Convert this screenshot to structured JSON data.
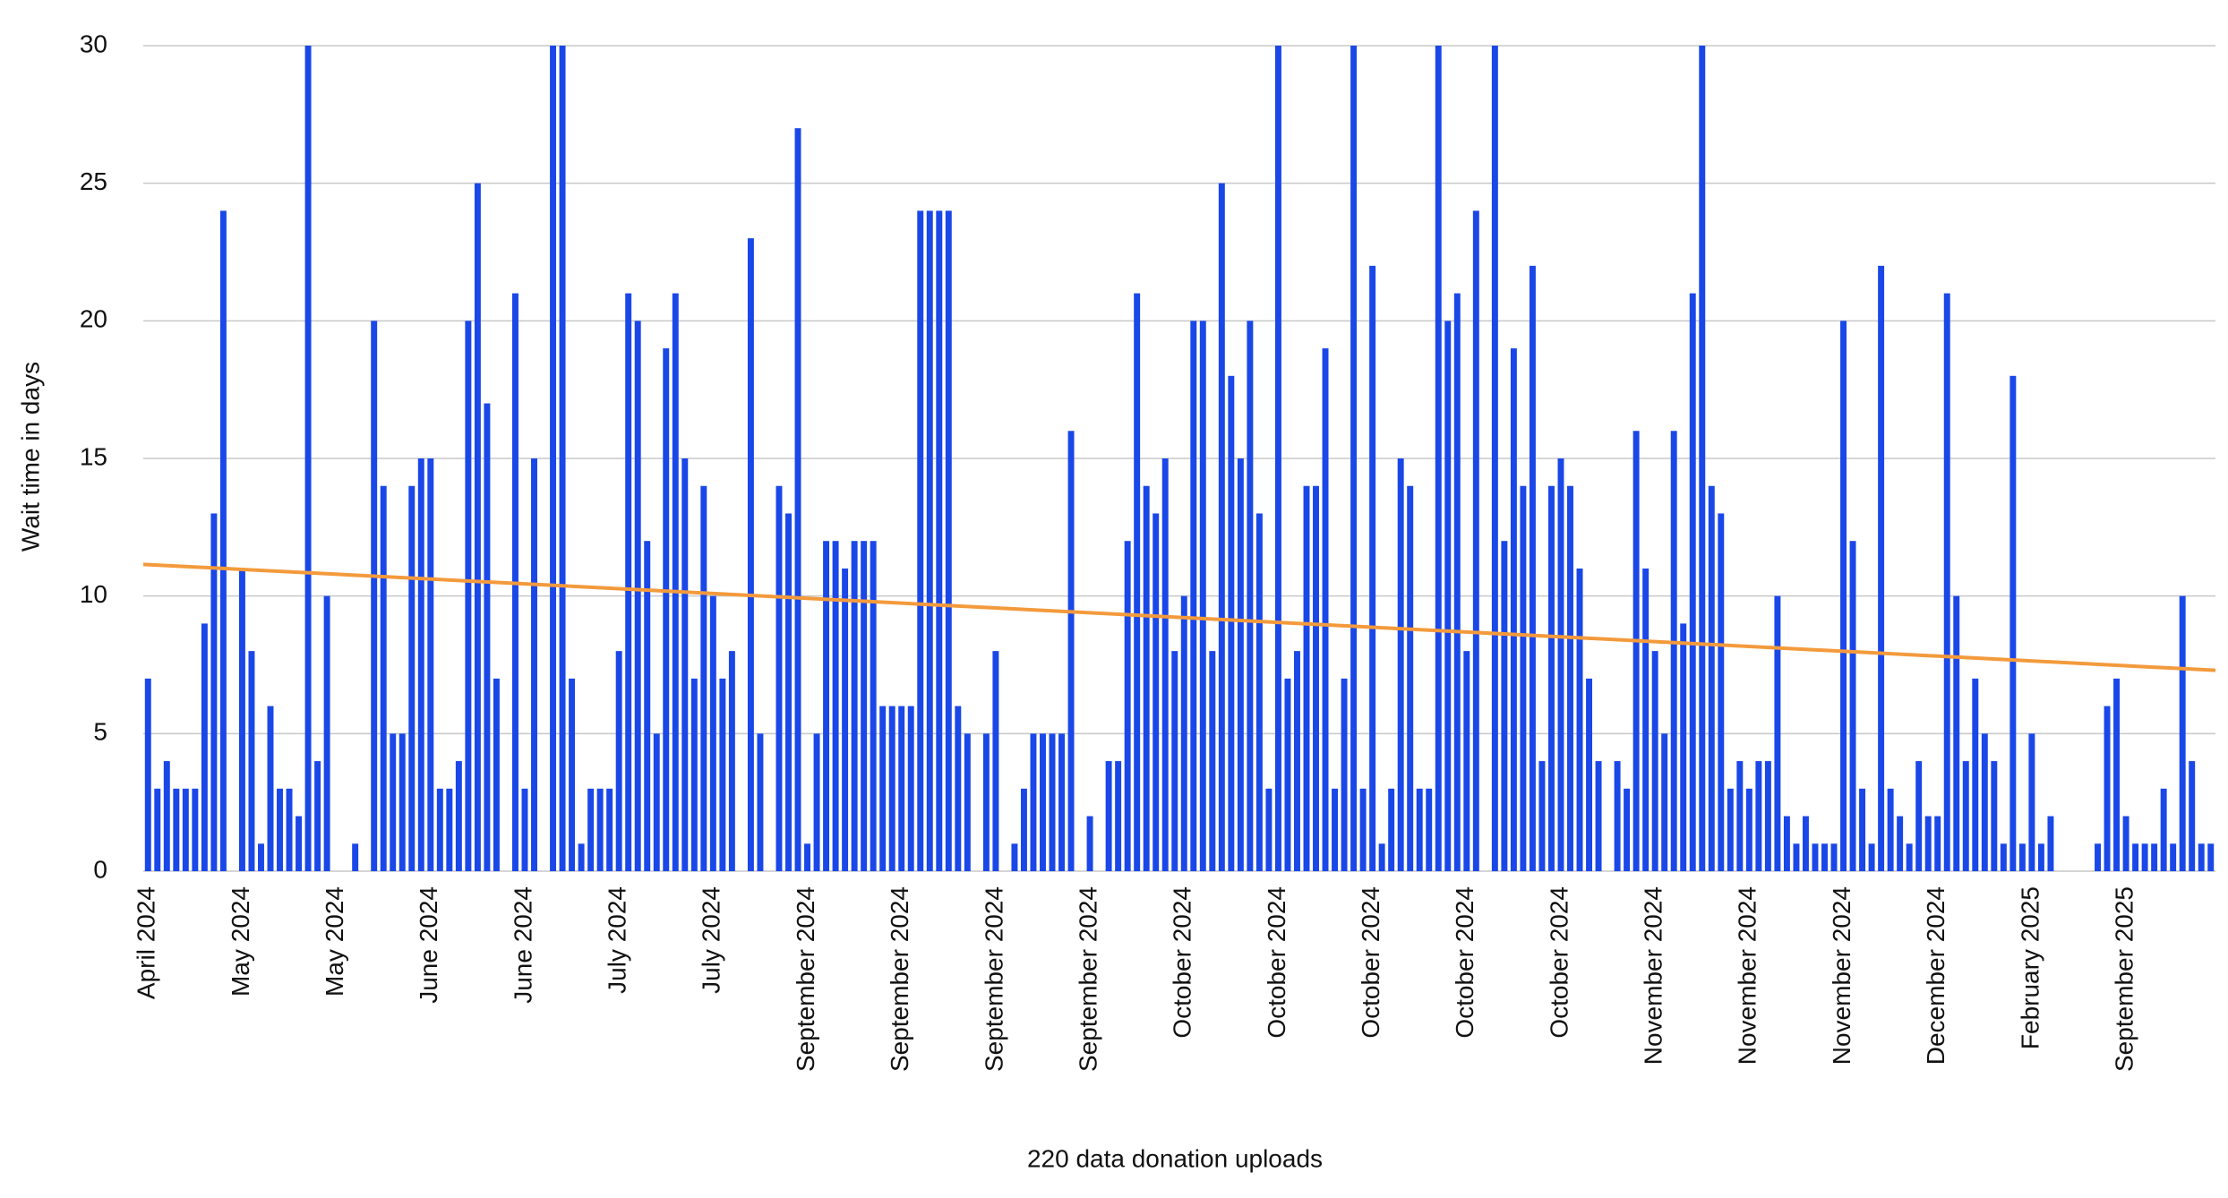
{
  "chart_data": {
    "type": "bar",
    "x_label": "220 data donation uploads",
    "y_label": "Wait time in days",
    "color": "#1a47e8",
    "grid": true,
    "ylim": [
      0,
      30
    ],
    "yticks": [
      0,
      5,
      10,
      15,
      20,
      25,
      30
    ],
    "categories": [
      "April 2024",
      null,
      null,
      null,
      null,
      null,
      null,
      null,
      null,
      null,
      "May 2024",
      null,
      null,
      null,
      null,
      null,
      null,
      null,
      null,
      null,
      "May 2024",
      null,
      null,
      null,
      null,
      null,
      null,
      null,
      null,
      null,
      "June 2024",
      null,
      null,
      null,
      null,
      null,
      null,
      null,
      null,
      null,
      "June 2024",
      null,
      null,
      null,
      null,
      null,
      null,
      null,
      null,
      null,
      "July 2024",
      null,
      null,
      null,
      null,
      null,
      null,
      null,
      null,
      null,
      "July 2024",
      null,
      null,
      null,
      null,
      null,
      null,
      null,
      null,
      null,
      "September 2024",
      null,
      null,
      null,
      null,
      null,
      null,
      null,
      null,
      null,
      "September 2024",
      null,
      null,
      null,
      null,
      null,
      null,
      null,
      null,
      null,
      "September 2024",
      null,
      null,
      null,
      null,
      null,
      null,
      null,
      null,
      null,
      "September 2024",
      null,
      null,
      null,
      null,
      null,
      null,
      null,
      null,
      null,
      "October 2024",
      null,
      null,
      null,
      null,
      null,
      null,
      null,
      null,
      null,
      "October 2024",
      null,
      null,
      null,
      null,
      null,
      null,
      null,
      null,
      null,
      "October 2024",
      null,
      null,
      null,
      null,
      null,
      null,
      null,
      null,
      null,
      "October 2024",
      null,
      null,
      null,
      null,
      null,
      null,
      null,
      null,
      null,
      "October 2024",
      null,
      null,
      null,
      null,
      null,
      null,
      null,
      null,
      null,
      "November 2024",
      null,
      null,
      null,
      null,
      null,
      null,
      null,
      null,
      null,
      "November 2024",
      null,
      null,
      null,
      null,
      null,
      null,
      null,
      null,
      null,
      "November 2024",
      null,
      null,
      null,
      null,
      null,
      null,
      null,
      null,
      null,
      "December 2024",
      null,
      null,
      null,
      null,
      null,
      null,
      null,
      null,
      null,
      "February 2025",
      null,
      null,
      null,
      null,
      null,
      null,
      null,
      null,
      null,
      "September 2025",
      null,
      null,
      null,
      null,
      null,
      null,
      null,
      null,
      null
    ],
    "values": [
      7,
      3,
      4,
      3,
      3,
      3,
      9,
      13,
      24,
      0,
      11,
      8,
      1,
      6,
      3,
      3,
      2,
      30,
      4,
      10,
      0,
      0,
      1,
      0,
      20,
      14,
      5,
      5,
      14,
      15,
      15,
      3,
      3,
      4,
      20,
      25,
      17,
      7,
      0,
      21,
      3,
      15,
      0,
      30,
      30,
      7,
      1,
      3,
      3,
      3,
      8,
      21,
      20,
      12,
      5,
      19,
      21,
      15,
      7,
      14,
      10,
      7,
      8,
      0,
      23,
      5,
      0,
      14,
      13,
      27,
      1,
      5,
      12,
      12,
      11,
      12,
      12,
      12,
      6,
      6,
      6,
      6,
      24,
      24,
      24,
      24,
      6,
      5,
      0,
      5,
      8,
      0,
      1,
      3,
      5,
      5,
      5,
      5,
      16,
      0,
      2,
      0,
      4,
      4,
      12,
      21,
      14,
      13,
      15,
      8,
      10,
      20,
      20,
      8,
      25,
      18,
      15,
      20,
      13,
      3,
      30,
      7,
      8,
      14,
      14,
      19,
      3,
      7,
      30,
      3,
      22,
      1,
      3,
      15,
      14,
      3,
      3,
      30,
      20,
      21,
      8,
      24,
      0,
      30,
      12,
      19,
      14,
      22,
      4,
      14,
      15,
      14,
      11,
      7,
      4,
      0,
      4,
      3,
      16,
      11,
      8,
      5,
      16,
      9,
      21,
      30,
      14,
      13,
      3,
      4,
      3,
      4,
      4,
      10,
      2,
      1,
      2,
      1,
      1,
      1,
      20,
      12,
      3,
      1,
      22,
      3,
      2,
      1,
      4,
      2,
      2,
      21,
      10,
      4,
      7,
      5,
      4,
      1,
      18,
      1,
      5,
      1,
      2,
      0,
      0,
      0,
      0,
      1,
      6,
      7,
      2,
      1,
      1,
      1,
      3,
      1,
      10,
      4,
      1,
      1
    ],
    "trend": {
      "color": "#f39a3c",
      "start": 11.15,
      "end": 7.3
    }
  }
}
